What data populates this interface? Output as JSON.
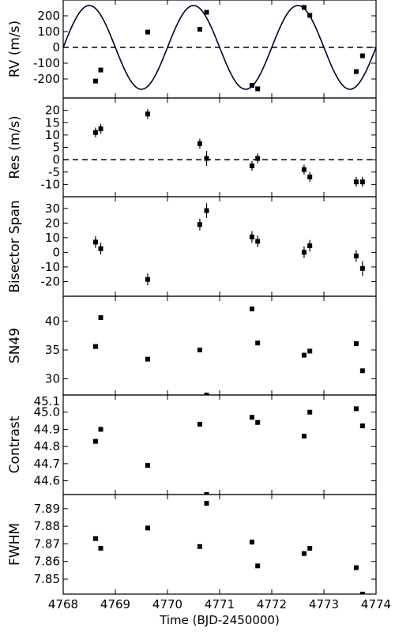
{
  "chart_data": [
    {
      "type": "scatter",
      "ylabel": "RV (m/s)",
      "xlim": [
        4768,
        4774
      ],
      "ylim": [
        -320,
        300
      ],
      "yticks": [
        -200,
        -100,
        0,
        100,
        200
      ],
      "model": {
        "type": "sinusoid",
        "amplitude": 265,
        "period": 2.0,
        "phase_zero_crossing": 4768.0,
        "color": "#000033"
      },
      "reference_line": {
        "y": 0,
        "style": "dashed"
      },
      "points": [
        {
          "x": 4768.62,
          "y": -213
        },
        {
          "x": 4768.72,
          "y": -143
        },
        {
          "x": 4769.62,
          "y": 97
        },
        {
          "x": 4770.62,
          "y": 115
        },
        {
          "x": 4770.75,
          "y": 222
        },
        {
          "x": 4771.62,
          "y": -240
        },
        {
          "x": 4771.73,
          "y": -262
        },
        {
          "x": 4772.62,
          "y": 253
        },
        {
          "x": 4772.73,
          "y": 203
        },
        {
          "x": 4773.62,
          "y": -153
        },
        {
          "x": 4773.74,
          "y": -53
        }
      ]
    },
    {
      "type": "scatter",
      "ylabel": "Res (m/s)",
      "xlim": [
        4768,
        4774
      ],
      "ylim": [
        -15,
        25
      ],
      "yticks": [
        -10,
        -5,
        0,
        5,
        10,
        15,
        20
      ],
      "reference_line": {
        "y": 0,
        "style": "dashed"
      },
      "points": [
        {
          "x": 4768.62,
          "y": 11,
          "err": 2
        },
        {
          "x": 4768.72,
          "y": 12.5,
          "err": 2
        },
        {
          "x": 4769.62,
          "y": 18.5,
          "err": 2
        },
        {
          "x": 4770.62,
          "y": 6.5,
          "err": 2
        },
        {
          "x": 4770.75,
          "y": 0.5,
          "err": 3
        },
        {
          "x": 4771.62,
          "y": -2.5,
          "err": 2
        },
        {
          "x": 4771.73,
          "y": 0.5,
          "err": 2
        },
        {
          "x": 4772.62,
          "y": -4,
          "err": 2
        },
        {
          "x": 4772.73,
          "y": -7,
          "err": 2
        },
        {
          "x": 4773.62,
          "y": -9,
          "err": 2
        },
        {
          "x": 4773.74,
          "y": -9,
          "err": 2
        }
      ]
    },
    {
      "type": "scatter",
      "ylabel": "Bisector Span",
      "xlim": [
        4768,
        4774
      ],
      "ylim": [
        -30,
        38
      ],
      "yticks": [
        -20,
        -10,
        0,
        10,
        20,
        30
      ],
      "points": [
        {
          "x": 4768.62,
          "y": 7,
          "err": 4
        },
        {
          "x": 4768.72,
          "y": 2.5,
          "err": 4
        },
        {
          "x": 4769.62,
          "y": -18.5,
          "err": 4
        },
        {
          "x": 4770.62,
          "y": 19,
          "err": 4
        },
        {
          "x": 4770.75,
          "y": 28.5,
          "err": 5
        },
        {
          "x": 4771.62,
          "y": 10.5,
          "err": 4
        },
        {
          "x": 4771.73,
          "y": 7.5,
          "err": 4
        },
        {
          "x": 4772.62,
          "y": 0,
          "err": 4
        },
        {
          "x": 4772.73,
          "y": 4.5,
          "err": 4
        },
        {
          "x": 4773.62,
          "y": -2.5,
          "err": 4
        },
        {
          "x": 4773.74,
          "y": -11,
          "err": 5
        }
      ]
    },
    {
      "type": "scatter",
      "ylabel": "SN49",
      "xlim": [
        4768,
        4774
      ],
      "ylim": [
        27.2,
        44.3
      ],
      "yticks": [
        30,
        35,
        40
      ],
      "points": [
        {
          "x": 4768.62,
          "y": 35.6
        },
        {
          "x": 4768.72,
          "y": 40.6
        },
        {
          "x": 4769.62,
          "y": 33.4
        },
        {
          "x": 4770.62,
          "y": 35.0
        },
        {
          "x": 4770.75,
          "y": 27.2
        },
        {
          "x": 4771.62,
          "y": 42.1
        },
        {
          "x": 4771.73,
          "y": 36.2
        },
        {
          "x": 4772.62,
          "y": 34.1
        },
        {
          "x": 4772.73,
          "y": 34.8
        },
        {
          "x": 4773.62,
          "y": 36.1
        },
        {
          "x": 4773.74,
          "y": 31.4
        }
      ]
    },
    {
      "type": "scatter",
      "ylabel": "Contrast",
      "xlim": [
        4768,
        4774
      ],
      "ylim": [
        44.52,
        45.1
      ],
      "yticks": [
        44.6,
        44.7,
        44.8,
        44.9,
        45.0,
        45.1
      ],
      "tick_labels": [
        "44.6",
        "44.7",
        "44.8",
        "44.9",
        "45.0",
        "45.1"
      ],
      "points": [
        {
          "x": 4768.62,
          "y": 44.83
        },
        {
          "x": 4768.72,
          "y": 44.9
        },
        {
          "x": 4769.62,
          "y": 44.69
        },
        {
          "x": 4770.62,
          "y": 44.93
        },
        {
          "x": 4770.75,
          "y": 44.52
        },
        {
          "x": 4771.62,
          "y": 44.97
        },
        {
          "x": 4771.73,
          "y": 44.94
        },
        {
          "x": 4772.62,
          "y": 44.86
        },
        {
          "x": 4772.73,
          "y": 45.0
        },
        {
          "x": 4773.62,
          "y": 45.02
        },
        {
          "x": 4773.74,
          "y": 44.92
        }
      ]
    },
    {
      "type": "scatter",
      "ylabel": "FWHM",
      "xlabel": "Time (BJD-2450000)",
      "xlim": [
        4768,
        4774
      ],
      "xticks": [
        4768,
        4769,
        4770,
        4771,
        4772,
        4773,
        4774
      ],
      "ylim": [
        7.8415,
        7.898
      ],
      "yticks": [
        7.85,
        7.86,
        7.87,
        7.88,
        7.89
      ],
      "tick_labels": [
        "7.85",
        "7.86",
        "7.87",
        "7.88",
        "7.89"
      ],
      "points": [
        {
          "x": 4768.62,
          "y": 7.873
        },
        {
          "x": 4768.72,
          "y": 7.8675
        },
        {
          "x": 4769.62,
          "y": 7.879
        },
        {
          "x": 4770.62,
          "y": 7.8685
        },
        {
          "x": 4770.75,
          "y": 7.893
        },
        {
          "x": 4771.62,
          "y": 7.871
        },
        {
          "x": 4771.73,
          "y": 7.8575
        },
        {
          "x": 4772.62,
          "y": 7.8645
        },
        {
          "x": 4772.73,
          "y": 7.8675
        },
        {
          "x": 4773.62,
          "y": 7.8565
        },
        {
          "x": 4773.74,
          "y": 7.8415
        }
      ]
    }
  ]
}
